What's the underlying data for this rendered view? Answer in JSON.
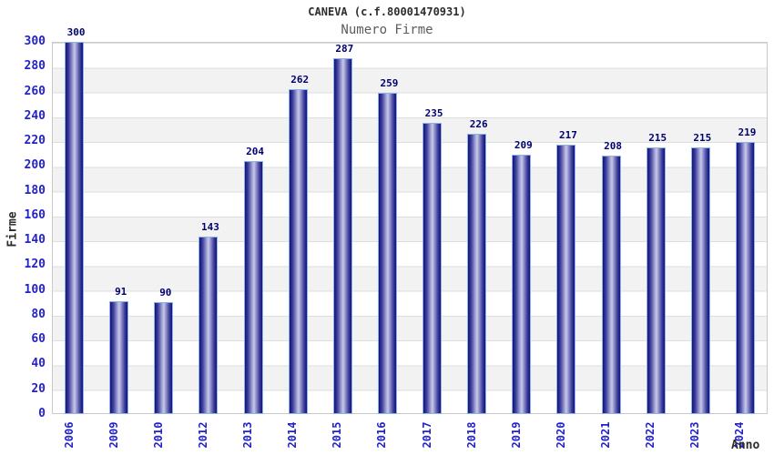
{
  "chart_data": {
    "type": "bar",
    "title": "CANEVA (c.f.80001470931)",
    "subtitle": "Numero Firme",
    "xlabel": "Anno",
    "ylabel": "Firme",
    "categories": [
      "2006",
      "2009",
      "2010",
      "2012",
      "2013",
      "2014",
      "2015",
      "2016",
      "2017",
      "2018",
      "2019",
      "2020",
      "2021",
      "2022",
      "2023",
      "2024"
    ],
    "values": [
      300,
      91,
      90,
      143,
      204,
      262,
      287,
      259,
      235,
      226,
      209,
      217,
      208,
      215,
      215,
      219
    ],
    "ylim": [
      0,
      300
    ],
    "y_tick_step": 20,
    "y_ticks": [
      0,
      20,
      40,
      60,
      80,
      100,
      120,
      140,
      160,
      180,
      200,
      220,
      240,
      260,
      280,
      300
    ],
    "grid": "horizontal-alternating-bands",
    "legend": "none"
  },
  "colors": {
    "bar_edge": "#12127a",
    "bar_center": "#c7c9e8",
    "bar_border": "#8ab4e8",
    "tick_label": "#2222cc",
    "value_label": "#000070",
    "band_gray": "#f2f2f2",
    "band_white": "#ffffff",
    "gridline": "#dedede",
    "plot_border": "#c9c9c9",
    "title_color": "#2d2d2d",
    "subtitle_color": "#5c5c5c"
  }
}
